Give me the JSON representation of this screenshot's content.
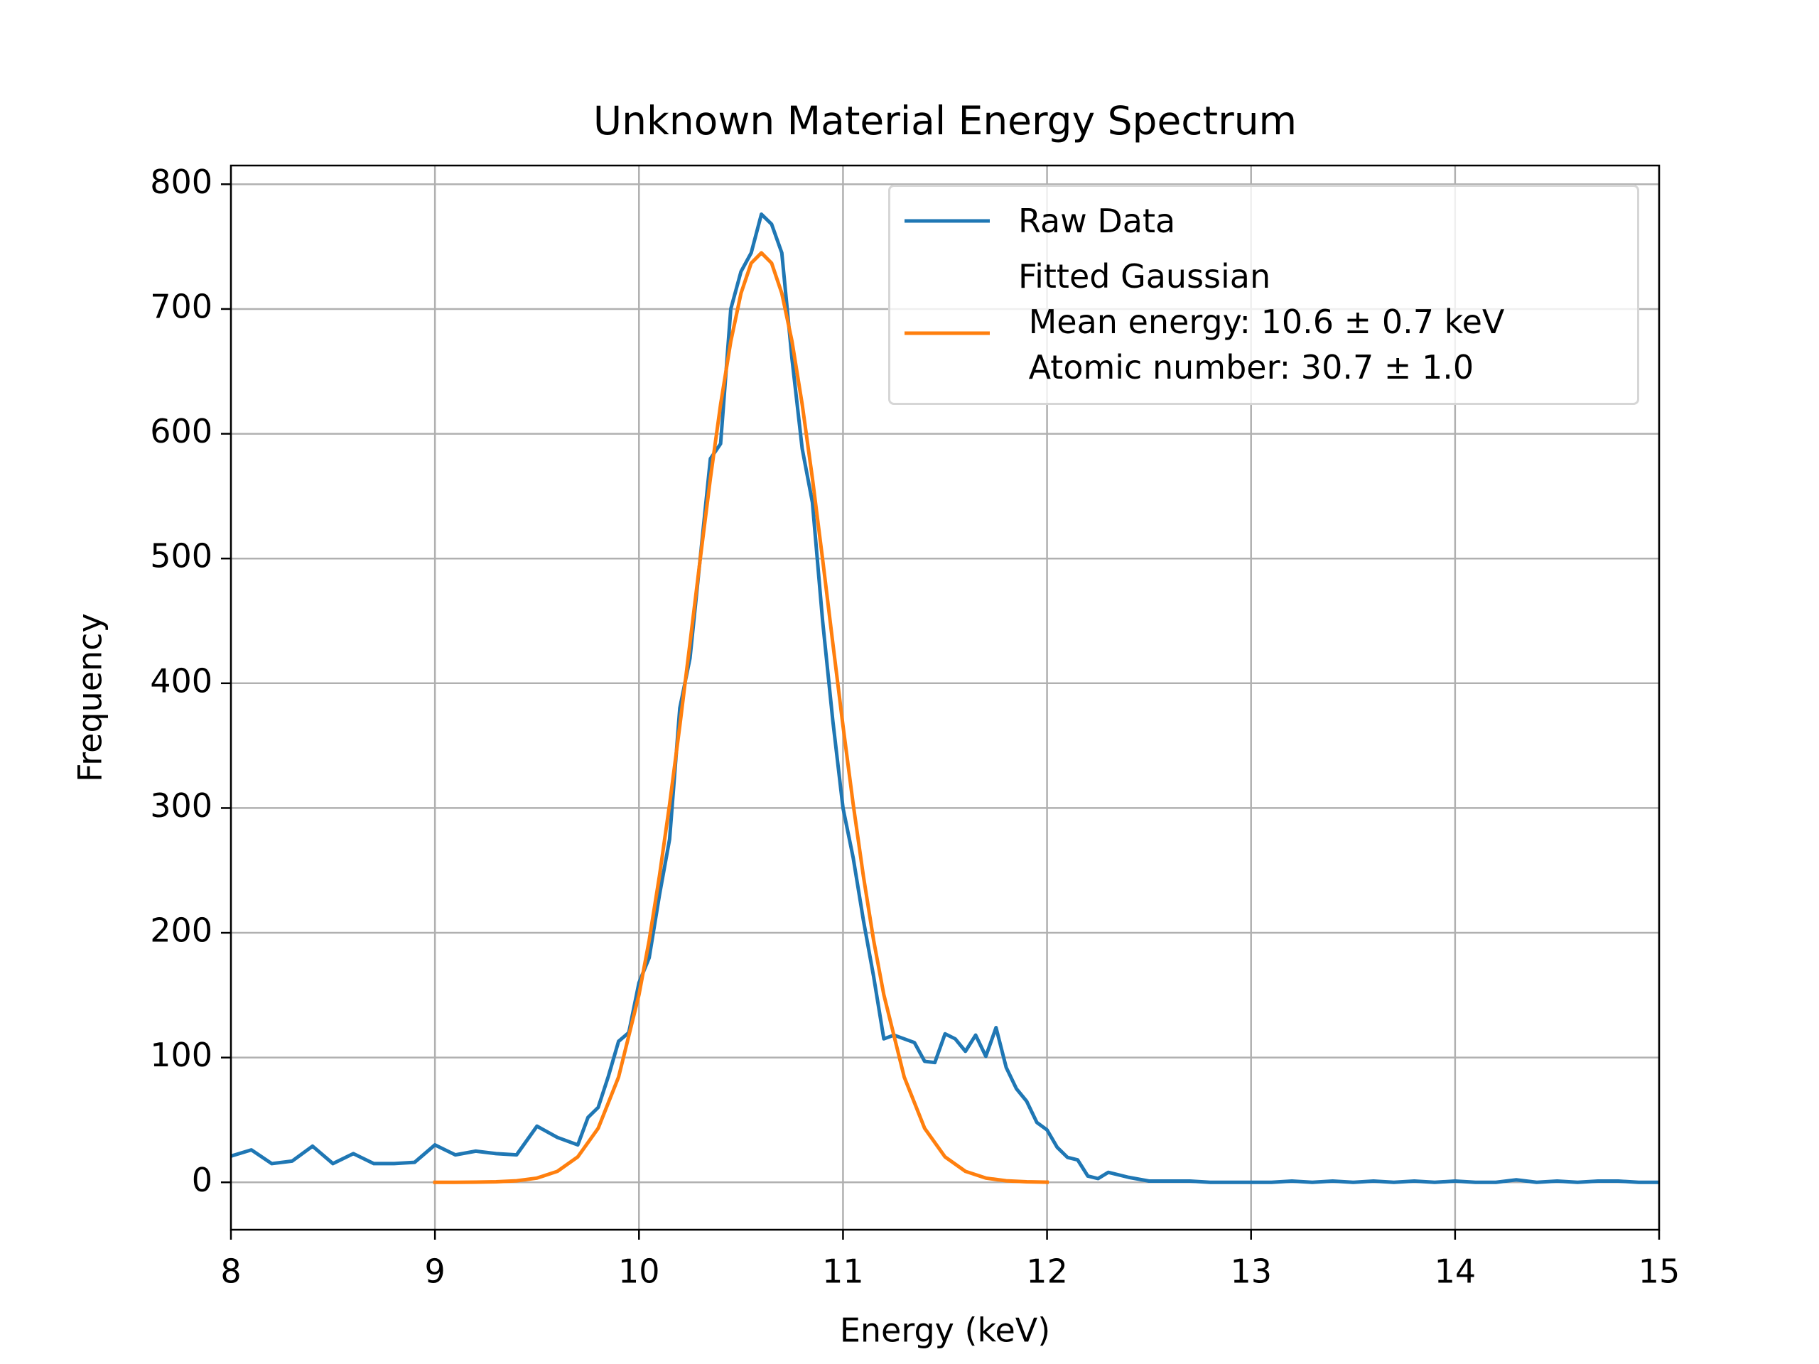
{
  "chart_data": {
    "type": "line",
    "title": "Unknown Material Energy Spectrum",
    "x_label": "Energy (keV)",
    "y_label": "Frequency",
    "xlim": [
      8,
      15
    ],
    "ylim": [
      -38,
      815
    ],
    "xticks": [
      8,
      9,
      10,
      11,
      12,
      13,
      14,
      15
    ],
    "yticks": [
      0,
      100,
      200,
      300,
      400,
      500,
      600,
      700,
      800
    ],
    "grid": true,
    "legend_position": "upper right",
    "series": [
      {
        "name": "Raw Data",
        "color": "#1f77b4",
        "x": [
          8.0,
          8.1,
          8.2,
          8.3,
          8.4,
          8.5,
          8.6,
          8.7,
          8.8,
          8.9,
          9.0,
          9.1,
          9.2,
          9.3,
          9.4,
          9.5,
          9.6,
          9.7,
          9.75,
          9.8,
          9.85,
          9.9,
          9.95,
          10.0,
          10.05,
          10.1,
          10.15,
          10.2,
          10.25,
          10.3,
          10.35,
          10.4,
          10.45,
          10.5,
          10.55,
          10.6,
          10.65,
          10.7,
          10.75,
          10.8,
          10.85,
          10.9,
          10.95,
          11.0,
          11.05,
          11.1,
          11.15,
          11.2,
          11.25,
          11.3,
          11.35,
          11.4,
          11.45,
          11.5,
          11.55,
          11.6,
          11.65,
          11.7,
          11.75,
          11.8,
          11.85,
          11.9,
          11.95,
          12.0,
          12.05,
          12.1,
          12.15,
          12.2,
          12.25,
          12.3,
          12.4,
          12.5,
          12.6,
          12.7,
          12.8,
          12.9,
          13.0,
          13.1,
          13.2,
          13.3,
          13.4,
          13.5,
          13.6,
          13.7,
          13.8,
          13.9,
          14.0,
          14.1,
          14.2,
          14.3,
          14.4,
          14.5,
          14.6,
          14.7,
          14.8,
          14.9,
          15.0
        ],
        "values": [
          21,
          26,
          15,
          17,
          29,
          15,
          23,
          15,
          15,
          16,
          30,
          22,
          25,
          23,
          22,
          45,
          36,
          30,
          52,
          60,
          85,
          113,
          120,
          160,
          180,
          230,
          275,
          380,
          420,
          500,
          580,
          592,
          700,
          730,
          745,
          776,
          768,
          745,
          660,
          588,
          545,
          450,
          370,
          300,
          260,
          210,
          165,
          115,
          118,
          115,
          112,
          97,
          96,
          119,
          115,
          105,
          118,
          101,
          124,
          92,
          75,
          65,
          48,
          42,
          28,
          20,
          18,
          5,
          3,
          8,
          4,
          1,
          1,
          1,
          0,
          0,
          0,
          0,
          1,
          0,
          1,
          0,
          1,
          0,
          1,
          0,
          1,
          0,
          0,
          2,
          0,
          1,
          0,
          1,
          1,
          0,
          0
        ]
      },
      {
        "name": "Fitted Gaussian\n Mean energy: 10.6 ± 0.7 keV\n Atomic number: 30.7 ± 1.0",
        "color": "#ff7f0e",
        "x": [
          9.0,
          9.1,
          9.2,
          9.3,
          9.4,
          9.5,
          9.6,
          9.7,
          9.8,
          9.9,
          10.0,
          10.05,
          10.1,
          10.15,
          10.2,
          10.25,
          10.3,
          10.35,
          10.4,
          10.45,
          10.5,
          10.55,
          10.6,
          10.65,
          10.7,
          10.75,
          10.8,
          10.85,
          10.9,
          10.95,
          11.0,
          11.05,
          11.1,
          11.15,
          11.2,
          11.3,
          11.4,
          11.5,
          11.6,
          11.7,
          11.8,
          11.9,
          12.0
        ],
        "values": [
          0.01,
          0.03,
          0.12,
          0.41,
          1.2,
          3.4,
          8.8,
          20.4,
          43.3,
          84.4,
          150.4,
          194.0,
          245.3,
          302.9,
          365.8,
          432.2,
          499.4,
          564.3,
          623.5,
          674.1,
          712.6,
          736.8,
          745,
          736.8,
          712.6,
          674.1,
          623.5,
          564.3,
          499.4,
          432.2,
          365.8,
          302.9,
          245.3,
          194.0,
          150.4,
          84.4,
          43.3,
          20.4,
          8.8,
          3.4,
          1.2,
          0.41,
          0.12
        ]
      }
    ]
  }
}
